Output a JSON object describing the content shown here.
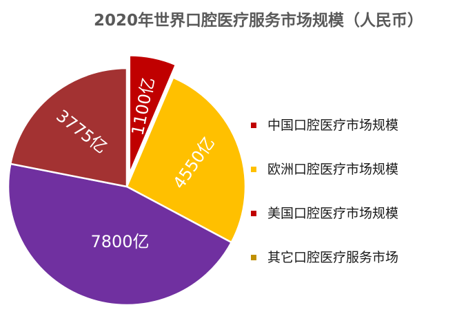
{
  "chart_data": {
    "type": "pie",
    "title": "2020年世界口腔医疗服务市场规模（人民币）",
    "slices": [
      {
        "legend": "中国口腔医疗市场规模",
        "value": 1100,
        "label": "1100亿",
        "color": "#C00000",
        "exploded": true
      },
      {
        "legend": "欧洲口腔医疗市场规模",
        "value": 4550,
        "label": "4550亿",
        "color": "#FFC000",
        "exploded": false
      },
      {
        "legend": "美国口腔医疗市场规模",
        "value": 7800,
        "label": "7800亿",
        "color": "#7030A0",
        "exploded": false
      },
      {
        "legend": "其它口腔医疗服务市场",
        "value": 3775,
        "label": "3775亿",
        "color": "#A33232",
        "exploded": false
      }
    ],
    "legend_markers": [
      "#C00000",
      "#FFC000",
      "#C00000",
      "#C09000"
    ],
    "legend_position": "right",
    "start_angle": "top",
    "direction": "clockwise"
  }
}
